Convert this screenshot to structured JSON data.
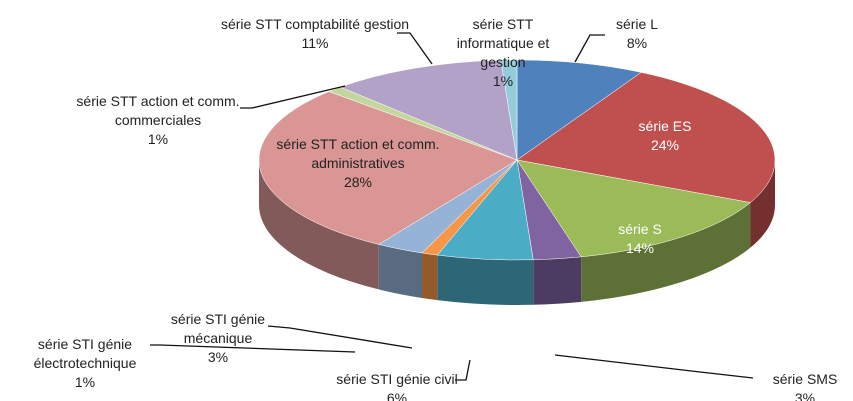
{
  "chart_data": {
    "type": "pie3d",
    "categories": [
      "série L",
      "série ES",
      "série S",
      "série SMS",
      "série STI génie civil",
      "série STI génie électrotechnique",
      "série STI génie mécanique",
      "série STT action et comm. administratives",
      "série STT action et comm. commerciales",
      "série STT comptabilité gestion",
      "série STT informatique et gestion"
    ],
    "values": [
      8,
      24,
      14,
      3,
      6,
      1,
      3,
      28,
      1,
      11,
      1
    ],
    "value_labels": [
      "8%",
      "24%",
      "14%",
      "3%",
      "6%",
      "1%",
      "3%",
      "28%",
      "1%",
      "11%",
      "1%"
    ],
    "colors": [
      "#4f81bd",
      "#c0504d",
      "#9bbb59",
      "#8064a2",
      "#4bacc6",
      "#f79646",
      "#95b3d7",
      "#d99694",
      "#c3d69b",
      "#b3a2c7",
      "#93cddd"
    ]
  }
}
